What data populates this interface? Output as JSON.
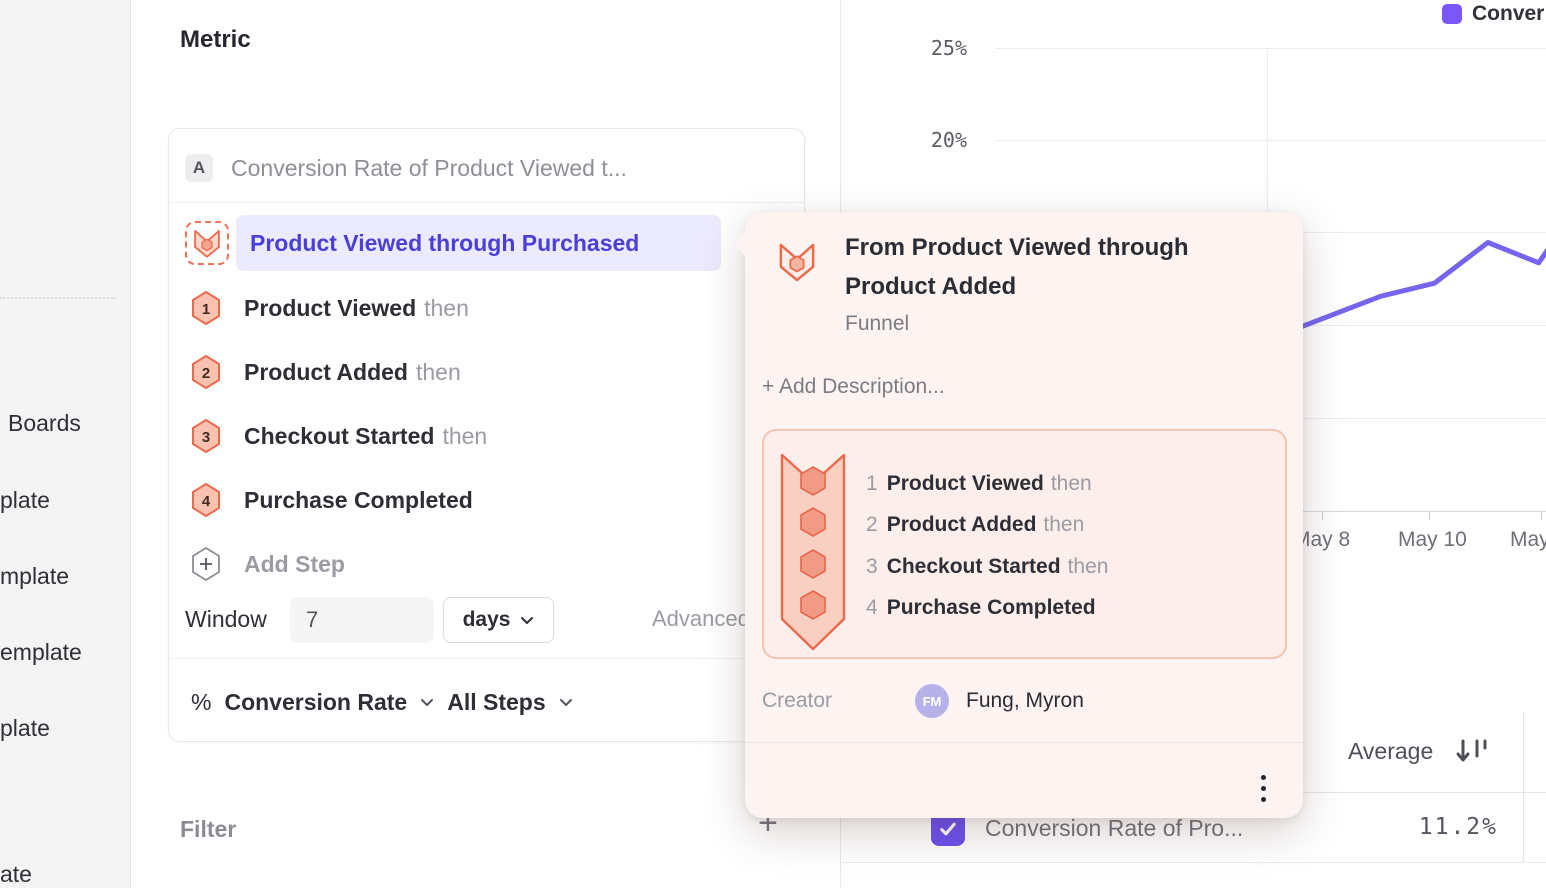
{
  "sidebar": {
    "items": [
      "Boards",
      "plate",
      "mplate",
      "emplate",
      "plate",
      "ate"
    ]
  },
  "metric": {
    "heading": "Metric",
    "series_badge": "A",
    "series_title": "Conversion Rate of Product Viewed t...",
    "selected_funnel": "Product Viewed through Purchased",
    "steps": [
      {
        "num": "1",
        "name": "Product Viewed",
        "connector": "then"
      },
      {
        "num": "2",
        "name": "Product Added",
        "connector": "then"
      },
      {
        "num": "3",
        "name": "Checkout Started",
        "connector": "then"
      },
      {
        "num": "4",
        "name": "Purchase Completed",
        "connector": ""
      }
    ],
    "add_step": "Add Step",
    "window_label": "Window",
    "window_value": "7",
    "window_unit": "days",
    "advanced": "Advanced",
    "measure_symbol": "%",
    "measure": "Conversion Rate",
    "steps_scope": "All Steps",
    "filter_heading": "Filter",
    "filter_add": "+"
  },
  "popup": {
    "title": "From Product Viewed through Product Added",
    "type": "Funnel",
    "add_description": "+ Add Description...",
    "steps": [
      {
        "num": "1",
        "name": "Product Viewed",
        "connector": "then"
      },
      {
        "num": "2",
        "name": "Product Added",
        "connector": "then"
      },
      {
        "num": "3",
        "name": "Checkout Started",
        "connector": "then"
      },
      {
        "num": "4",
        "name": "Purchase Completed",
        "connector": ""
      }
    ],
    "creator_label": "Creator",
    "creator_initials": "FM",
    "creator_name": "Fung, Myron"
  },
  "chart": {
    "legend": {
      "label": "Conver",
      "color": "#7a57f9"
    },
    "line_color": "#7565ee",
    "chart_data": {
      "type": "line",
      "series": [
        {
          "name": "Conversion Rate",
          "points_day_percent": [
            [
              7.3,
              9.6
            ],
            [
              9.1,
              11.6
            ],
            [
              10.1,
              12.3
            ],
            [
              11.1,
              14.5
            ],
            [
              12.05,
              13.4
            ],
            [
              12.5,
              15.3
            ]
          ]
        }
      ],
      "xlabel_ticks_visible": [
        "May 8",
        "May 10",
        "May"
      ],
      "ylabel_ticks_visible": [
        "25%",
        "20%"
      ],
      "y_axis": {
        "min_percent": 0,
        "max_percent": 25,
        "gridlines_percent": [
          25,
          20,
          15,
          10,
          5
        ]
      },
      "grid": true,
      "legend_position": "top-right"
    }
  },
  "table": {
    "header": {
      "average": "Average"
    },
    "rows": [
      {
        "selected": true,
        "name": "Conversion Rate of Pro...",
        "average": "11.2%"
      }
    ],
    "checkbox_color": "#6b50ee"
  },
  "colors": {
    "accent_purple": "#6b50ee",
    "highlight_text": "#4a3fd8",
    "highlight_bg": "#eceafd",
    "funnel_orange": "#ec6a4c",
    "funnel_fill": "#f9c4b2",
    "popup_bg": "#fdf4f2"
  }
}
